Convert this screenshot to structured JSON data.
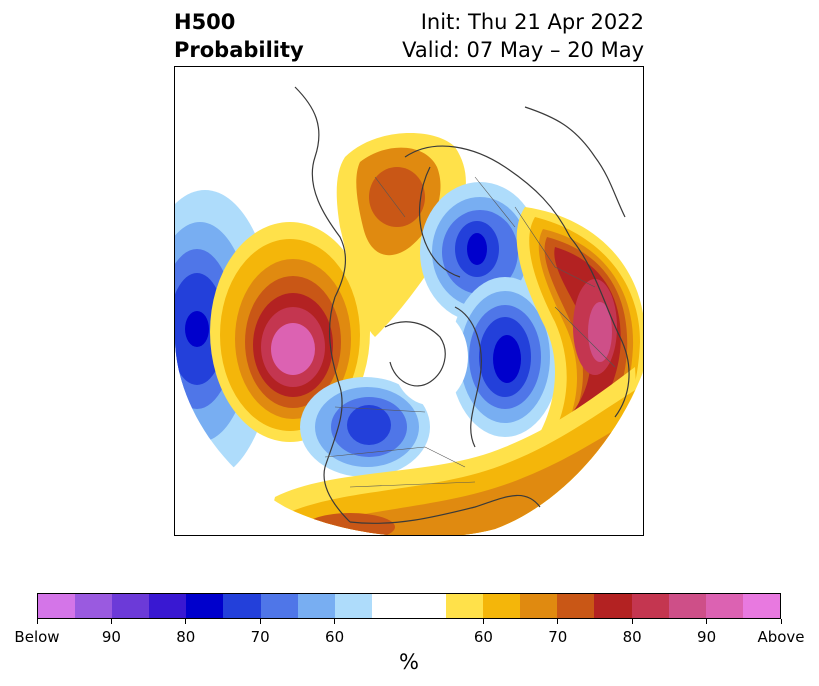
{
  "title": {
    "left_line1": "H500",
    "left_line2": "Probability",
    "right_line1": "Init: Thu 21 Apr 2022",
    "right_line2": "Valid: 07 May – 20 May"
  },
  "map": {
    "projection": "north-polar-stereographic",
    "features": [
      "coastlines",
      "country-borders",
      "state-borders"
    ]
  },
  "colorbar": {
    "unit_label": "%",
    "colors": [
      "#d475e8",
      "#9a5ae0",
      "#6c3ad8",
      "#3918d2",
      "#0000cc",
      "#2340da",
      "#4f76e8",
      "#78aef2",
      "#aedcfb",
      "#ffffff",
      "#ffe14a",
      "#f4b60a",
      "#e08a10",
      "#c95716",
      "#b32222",
      "#c43650",
      "#ce4f88",
      "#dc62b2",
      "#e879e0"
    ],
    "tick_labels": [
      "Below",
      "90",
      "80",
      "70",
      "60",
      "60",
      "70",
      "80",
      "90",
      "Above"
    ]
  }
}
